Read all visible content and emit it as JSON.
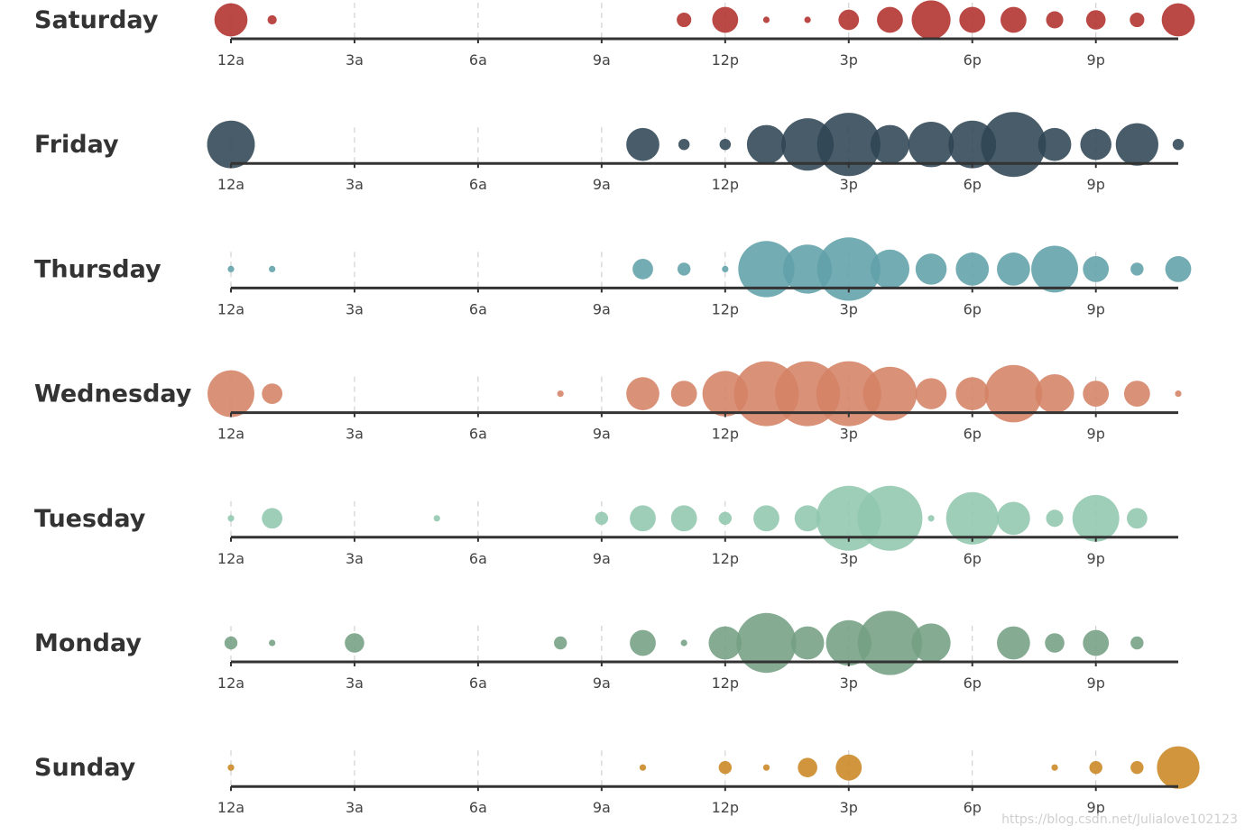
{
  "chart_data": {
    "type": "scatter",
    "subtype": "punch-card bubble chart",
    "x_tick_labels": [
      "12a",
      "3a",
      "6a",
      "9a",
      "12p",
      "3p",
      "6p",
      "9p"
    ],
    "x_tick_hours": [
      0,
      3,
      6,
      9,
      12,
      15,
      18,
      21
    ],
    "xlim": [
      0,
      23
    ],
    "grid": "dashed vertical lines at each tick",
    "size_encoding": "relative activity, 0-100 scale",
    "rows": [
      {
        "name": "Saturday",
        "color": "#b0302c",
        "values": [
          26,
          2,
          0,
          0,
          0,
          0,
          0,
          0,
          0,
          0,
          0,
          5,
          16,
          1,
          1,
          10,
          16,
          36,
          16,
          16,
          7,
          9,
          5,
          26
        ]
      },
      {
        "name": "Friday",
        "color": "#2f4554",
        "values": [
          54,
          0,
          0,
          0,
          0,
          0,
          0,
          0,
          0,
          0,
          26,
          3,
          3,
          36,
          65,
          95,
          36,
          49,
          54,
          100,
          26,
          23,
          43,
          3
        ]
      },
      {
        "name": "Thursday",
        "color": "#61a0a8",
        "values": [
          1,
          1,
          0,
          0,
          0,
          0,
          0,
          0,
          0,
          0,
          10,
          4,
          1,
          75,
          57,
          95,
          36,
          23,
          26,
          26,
          52,
          16,
          4,
          16
        ]
      },
      {
        "name": "Wednesday",
        "color": "#d48265",
        "values": [
          52,
          10,
          0,
          0,
          0,
          0,
          0,
          0,
          1,
          0,
          26,
          16,
          49,
          100,
          100,
          100,
          69,
          23,
          26,
          78,
          36,
          16,
          16,
          1
        ]
      },
      {
        "name": "Tuesday",
        "color": "#91c7ae",
        "values": [
          1,
          10,
          0,
          0,
          0,
          1,
          0,
          0,
          0,
          4,
          16,
          16,
          4,
          16,
          16,
          100,
          100,
          1,
          65,
          26,
          7,
          52,
          10,
          0
        ]
      },
      {
        "name": "Monday",
        "color": "#749f83",
        "values": [
          4,
          1,
          0,
          9,
          0,
          0,
          0,
          0,
          4,
          0,
          16,
          1,
          26,
          85,
          26,
          49,
          98,
          36,
          0,
          26,
          9,
          16,
          4,
          0
        ]
      },
      {
        "name": "Sunday",
        "color": "#ca8622",
        "values": [
          1,
          0,
          0,
          0,
          0,
          0,
          0,
          0,
          0,
          0,
          1,
          0,
          4,
          1,
          9,
          16,
          0,
          0,
          0,
          0,
          1,
          4,
          4,
          43
        ]
      }
    ]
  },
  "watermark": "https://blog.csdn.net/Julialove102123"
}
